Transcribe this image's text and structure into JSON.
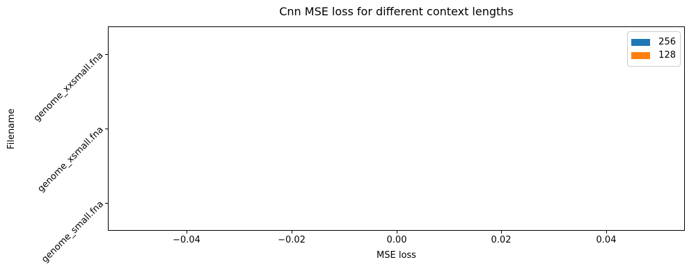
{
  "chart_data": {
    "type": "bar",
    "orientation": "horizontal",
    "title": "Cnn MSE loss for different context lengths",
    "xlabel": "MSE loss",
    "ylabel": "Filename",
    "categories": [
      "genome_xxsmall.fna",
      "genome_xsmall.fna",
      "genome_small.fna"
    ],
    "series": [
      {
        "name": "256",
        "color": "#1f77b4",
        "values": [
          0,
          0,
          0
        ]
      },
      {
        "name": "128",
        "color": "#ff7f0e",
        "values": [
          0,
          0,
          0
        ]
      }
    ],
    "xlim": [
      -0.055,
      0.055
    ],
    "x_ticks": [
      {
        "value": -0.04,
        "label": "−0.04"
      },
      {
        "value": -0.02,
        "label": "−0.02"
      },
      {
        "value": 0.0,
        "label": "0.00"
      },
      {
        "value": 0.02,
        "label": "0.02"
      },
      {
        "value": 0.04,
        "label": "0.04"
      }
    ],
    "legend": {
      "position": "upper right",
      "entries": [
        "256",
        "128"
      ]
    },
    "grid": false,
    "background": "#ffffff",
    "axis_color": "#000000"
  }
}
